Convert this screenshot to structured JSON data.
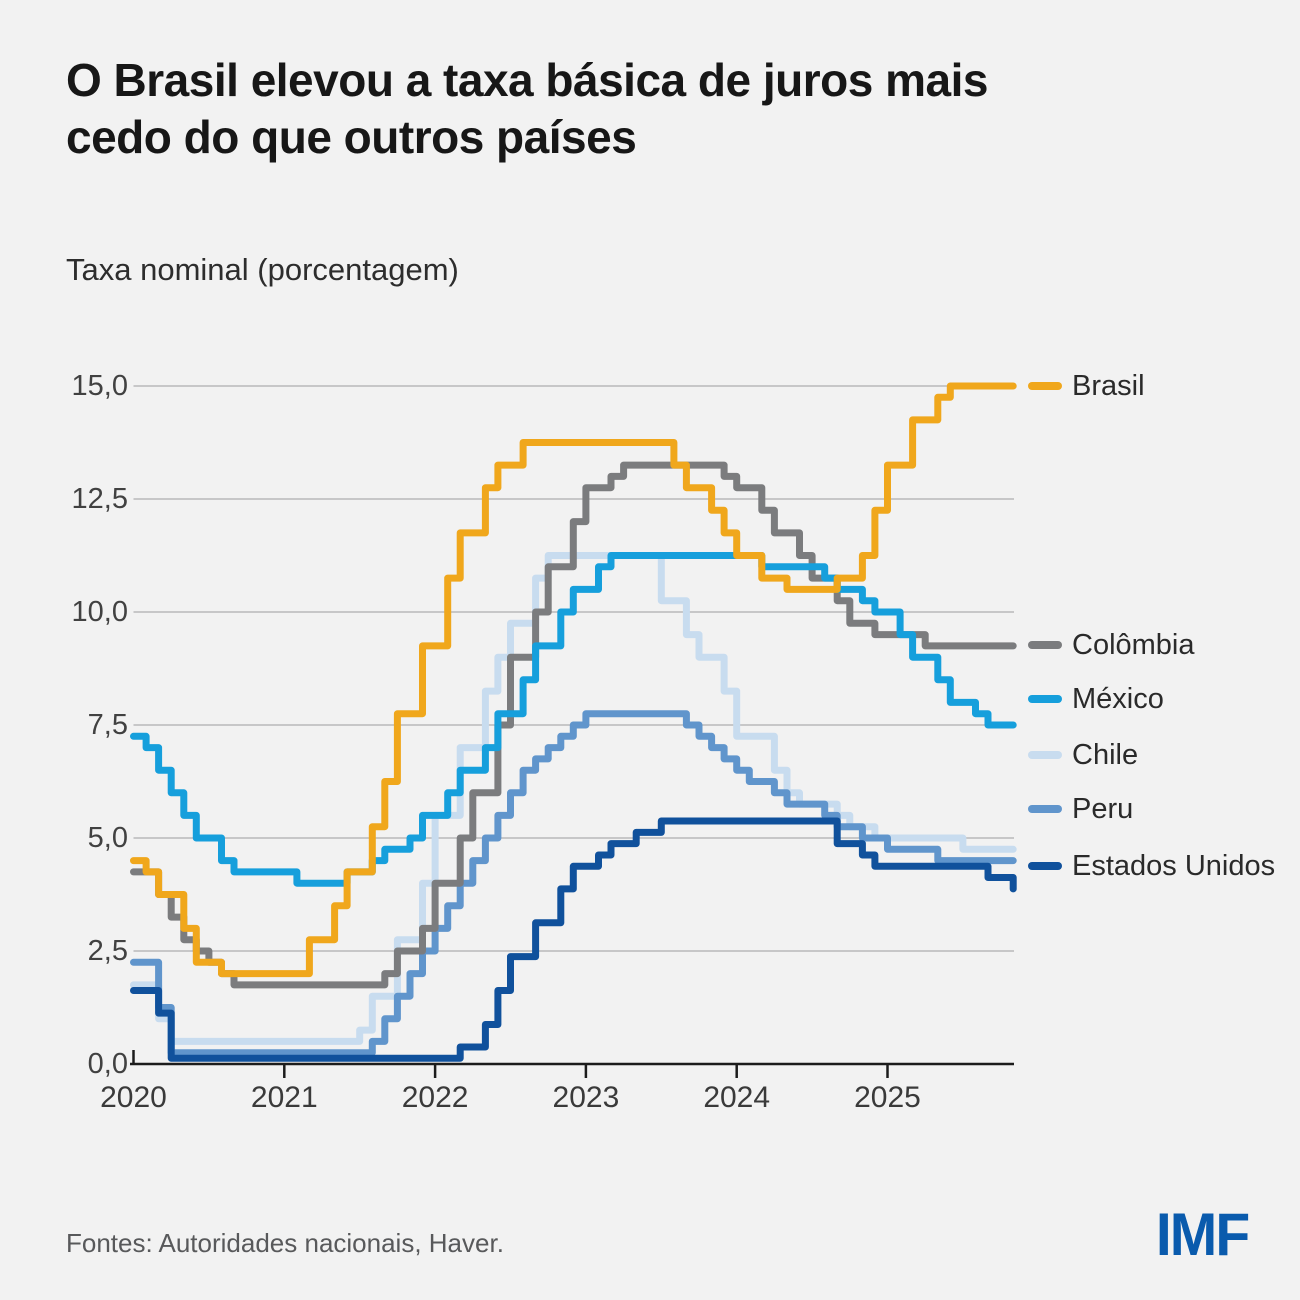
{
  "header": {
    "title_line1": "O Brasil elevou a taxa básica de juros mais",
    "title_line2": "cedo do que outros países",
    "subtitle": "Taxa nominal (porcentagem)"
  },
  "footer": {
    "source": "Fontes: Autoridades nacionais, Haver.",
    "logo": "IMF",
    "logo_color": "#0a5bad"
  },
  "colors": {
    "background": "#f2f2f2",
    "gridline": "#c7c7c8",
    "axis": "#1c1c1c",
    "tick_text": "#414141",
    "legend_text": "#2a2a2a"
  },
  "chart_data": {
    "type": "line",
    "step": true,
    "frequency": "monthly",
    "x_start": "2020-01",
    "x_end": "2025-11",
    "x_ticks": [
      "2020",
      "2021",
      "2022",
      "2023",
      "2024",
      "2025"
    ],
    "y_ticks": [
      "0,0",
      "2,5",
      "5,0",
      "7,5",
      "10,0",
      "12,5",
      "15,0"
    ],
    "ylim": [
      0,
      15
    ],
    "grid": "horizontal",
    "legend_position": "right",
    "ylabel": "Taxa nominal (porcentagem)",
    "series": [
      {
        "name": "Brasil",
        "color": "#f0a71c",
        "values": [
          4.5,
          4.25,
          3.75,
          3.75,
          3.0,
          2.25,
          2.25,
          2.0,
          2.0,
          2.0,
          2.0,
          2.0,
          2.0,
          2.0,
          2.75,
          2.75,
          3.5,
          4.25,
          4.25,
          5.25,
          6.25,
          7.75,
          7.75,
          9.25,
          9.25,
          10.75,
          11.75,
          11.75,
          12.75,
          13.25,
          13.25,
          13.75,
          13.75,
          13.75,
          13.75,
          13.75,
          13.75,
          13.75,
          13.75,
          13.75,
          13.75,
          13.75,
          13.75,
          13.25,
          12.75,
          12.75,
          12.25,
          11.75,
          11.25,
          11.25,
          10.75,
          10.75,
          10.5,
          10.5,
          10.5,
          10.5,
          10.75,
          10.75,
          11.25,
          12.25,
          13.25,
          13.25,
          14.25,
          14.25,
          14.75,
          15.0,
          15.0,
          15.0,
          15.0,
          15.0,
          15.0
        ]
      },
      {
        "name": "Colômbia",
        "color": "#7b7c7e",
        "values": [
          4.25,
          4.25,
          3.75,
          3.25,
          2.75,
          2.5,
          2.25,
          2.0,
          1.75,
          1.75,
          1.75,
          1.75,
          1.75,
          1.75,
          1.75,
          1.75,
          1.75,
          1.75,
          1.75,
          1.75,
          2.0,
          2.5,
          2.5,
          3.0,
          4.0,
          4.0,
          5.0,
          6.0,
          6.0,
          7.5,
          9.0,
          9.0,
          10.0,
          11.0,
          11.0,
          12.0,
          12.75,
          12.75,
          13.0,
          13.25,
          13.25,
          13.25,
          13.25,
          13.25,
          13.25,
          13.25,
          13.25,
          13.0,
          12.75,
          12.75,
          12.25,
          11.75,
          11.75,
          11.25,
          10.75,
          10.75,
          10.25,
          9.75,
          9.75,
          9.5,
          9.5,
          9.5,
          9.5,
          9.25,
          9.25,
          9.25,
          9.25,
          9.25,
          9.25,
          9.25,
          9.25
        ]
      },
      {
        "name": "México",
        "color": "#169fdc",
        "values": [
          7.25,
          7.0,
          6.5,
          6.0,
          5.5,
          5.0,
          5.0,
          4.5,
          4.25,
          4.25,
          4.25,
          4.25,
          4.25,
          4.0,
          4.0,
          4.0,
          4.0,
          4.25,
          4.25,
          4.5,
          4.75,
          4.75,
          5.0,
          5.5,
          5.5,
          6.0,
          6.5,
          6.5,
          7.0,
          7.75,
          7.75,
          8.5,
          9.25,
          9.25,
          10.0,
          10.5,
          10.5,
          11.0,
          11.25,
          11.25,
          11.25,
          11.25,
          11.25,
          11.25,
          11.25,
          11.25,
          11.25,
          11.25,
          11.25,
          11.25,
          11.0,
          11.0,
          11.0,
          11.0,
          11.0,
          10.75,
          10.5,
          10.5,
          10.25,
          10.0,
          10.0,
          9.5,
          9.0,
          9.0,
          8.5,
          8.0,
          8.0,
          7.75,
          7.5,
          7.5,
          7.5
        ]
      },
      {
        "name": "Chile",
        "color": "#c8dcef",
        "values": [
          1.75,
          1.75,
          1.0,
          0.5,
          0.5,
          0.5,
          0.5,
          0.5,
          0.5,
          0.5,
          0.5,
          0.5,
          0.5,
          0.5,
          0.5,
          0.5,
          0.5,
          0.5,
          0.75,
          1.5,
          1.5,
          2.75,
          2.75,
          4.0,
          5.5,
          5.5,
          7.0,
          7.0,
          8.25,
          9.0,
          9.75,
          9.75,
          10.75,
          11.25,
          11.25,
          11.25,
          11.25,
          11.25,
          11.25,
          11.25,
          11.25,
          11.25,
          10.25,
          10.25,
          9.5,
          9.0,
          9.0,
          8.25,
          7.25,
          7.25,
          7.25,
          6.5,
          6.0,
          5.75,
          5.75,
          5.75,
          5.5,
          5.25,
          5.25,
          5.0,
          5.0,
          5.0,
          5.0,
          5.0,
          5.0,
          5.0,
          4.75,
          4.75,
          4.75,
          4.75,
          4.75
        ]
      },
      {
        "name": "Peru",
        "color": "#6095cc",
        "values": [
          2.25,
          2.25,
          1.25,
          0.25,
          0.25,
          0.25,
          0.25,
          0.25,
          0.25,
          0.25,
          0.25,
          0.25,
          0.25,
          0.25,
          0.25,
          0.25,
          0.25,
          0.25,
          0.25,
          0.5,
          1.0,
          1.5,
          2.0,
          2.5,
          3.0,
          3.5,
          4.0,
          4.5,
          5.0,
          5.5,
          6.0,
          6.5,
          6.75,
          7.0,
          7.25,
          7.5,
          7.75,
          7.75,
          7.75,
          7.75,
          7.75,
          7.75,
          7.75,
          7.75,
          7.5,
          7.25,
          7.0,
          6.75,
          6.5,
          6.25,
          6.25,
          6.0,
          5.75,
          5.75,
          5.75,
          5.5,
          5.25,
          5.25,
          5.0,
          5.0,
          4.75,
          4.75,
          4.75,
          4.75,
          4.5,
          4.5,
          4.5,
          4.5,
          4.5,
          4.5,
          4.5
        ]
      },
      {
        "name": "Estados Unidos",
        "color": "#10519c",
        "values": [
          1.625,
          1.625,
          1.125,
          0.125,
          0.125,
          0.125,
          0.125,
          0.125,
          0.125,
          0.125,
          0.125,
          0.125,
          0.125,
          0.125,
          0.125,
          0.125,
          0.125,
          0.125,
          0.125,
          0.125,
          0.125,
          0.125,
          0.125,
          0.125,
          0.125,
          0.125,
          0.375,
          0.375,
          0.875,
          1.625,
          2.375,
          2.375,
          3.125,
          3.125,
          3.875,
          4.375,
          4.375,
          4.625,
          4.875,
          4.875,
          5.125,
          5.125,
          5.375,
          5.375,
          5.375,
          5.375,
          5.375,
          5.375,
          5.375,
          5.375,
          5.375,
          5.375,
          5.375,
          5.375,
          5.375,
          5.375,
          4.875,
          4.875,
          4.625,
          4.375,
          4.375,
          4.375,
          4.375,
          4.375,
          4.375,
          4.375,
          4.375,
          4.375,
          4.125,
          4.125,
          3.875
        ]
      }
    ]
  }
}
